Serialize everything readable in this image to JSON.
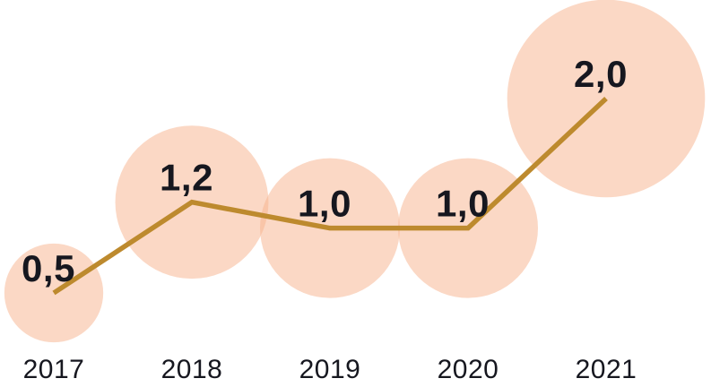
{
  "chart_data": {
    "type": "scatter",
    "subtype": "bubble-line",
    "title": "",
    "xlabel": "",
    "ylabel": "",
    "grid": false,
    "legend": false,
    "categories": [
      "2017",
      "2018",
      "2019",
      "2020",
      "2021"
    ],
    "values": [
      0.5,
      1.2,
      1.0,
      1.0,
      2.0
    ],
    "point_labels": [
      "0,5",
      "1,2",
      "1,0",
      "1,0",
      "2,0"
    ],
    "value_range": [
      0,
      2.2
    ],
    "bubble_area_proportional_to_value": true,
    "colors": {
      "bubble_fill": "#F7B18B",
      "bubble_opacity": 0.5,
      "line": "#BD8A2E",
      "text": "#16171F"
    },
    "line_width": 5.5
  }
}
